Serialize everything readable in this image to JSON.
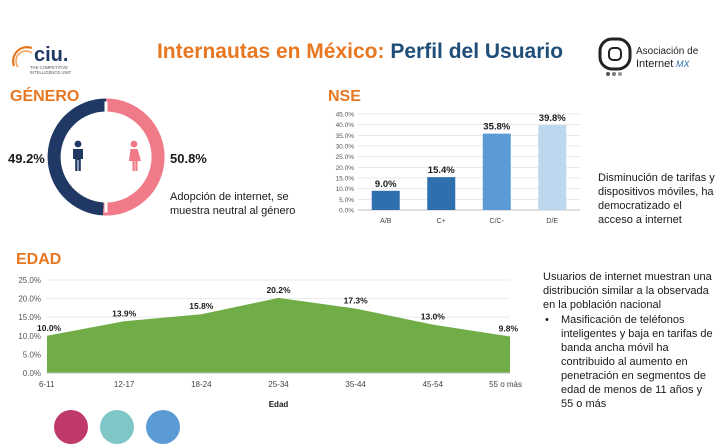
{
  "header": {
    "title_part1": "Internautas en México:",
    "title_part2": "Perfil del Usuario",
    "left_logo_text": "ciu.",
    "left_logo_sub1": "THE COMPETITIVE",
    "left_logo_sub2": "INTELLIGENCE UNIT",
    "right_logo_line1": "Asociación de",
    "right_logo_line2": "Internet",
    "right_logo_mx": "MX"
  },
  "gender": {
    "heading": "GÉNERO",
    "note": "Adopción de internet, se muestra neutral al género"
  },
  "nse": {
    "heading": "NSE",
    "note": "Disminución de tarifas y dispositivos móviles, ha democratizado el acceso a internet"
  },
  "edad": {
    "heading": "EDAD",
    "note_intro": "Usuarios de internet muestran una distribución similar a la observada en la población nacional",
    "bullet": "Masificación de teléfonos inteligentes y baja en tarifas de banda ancha móvil ha contribuido al aumento en penetración en segmentos de edad de menos de 11 años y 55 o más"
  },
  "colors": {
    "orange": "#e87722",
    "navy": "#1f3864",
    "pink": "#f07a87",
    "green": "#70ad47",
    "bar_dark": "#2e6fad",
    "bar_mid": "#5b9bd5",
    "bar_light": "#9dc3e6",
    "bar_lighter": "#bdd7ee"
  },
  "chart_data": [
    {
      "type": "pie",
      "categories": [
        "Hombres",
        "Mujeres"
      ],
      "values": [
        49.2,
        50.8
      ],
      "labels": [
        "49.2%",
        "50.8%"
      ],
      "icons": [
        "male-icon",
        "female-icon"
      ]
    },
    {
      "type": "bar",
      "categories": [
        "A/B",
        "C+",
        "C/C-",
        "D/E"
      ],
      "values": [
        9.0,
        15.4,
        35.8,
        39.8
      ],
      "labels": [
        "9.0%",
        "15.4%",
        "35.8%",
        "39.8%"
      ],
      "yticks": [
        "0.0%",
        "5.0%",
        "10.0%",
        "15.0%",
        "20.0%",
        "25.0%",
        "30.0%",
        "35.0%",
        "40.0%",
        "45.0%"
      ],
      "ylim": [
        0,
        45
      ]
    },
    {
      "type": "area",
      "categories": [
        "6-11",
        "12-17",
        "18-24",
        "25-34",
        "35-44",
        "45-54",
        "55 o más"
      ],
      "values": [
        10.0,
        13.9,
        15.8,
        20.2,
        17.3,
        13.0,
        9.8
      ],
      "labels": [
        "10.0%",
        "13.9%",
        "15.8%",
        "20.2%",
        "17.3%",
        "13.0%",
        "9.8%"
      ],
      "yticks": [
        "0.0%",
        "5.0%",
        "10.0%",
        "15.0%",
        "20.0%",
        "25.0%"
      ],
      "ylim": [
        0,
        25
      ],
      "xlabel": "Edad"
    }
  ]
}
